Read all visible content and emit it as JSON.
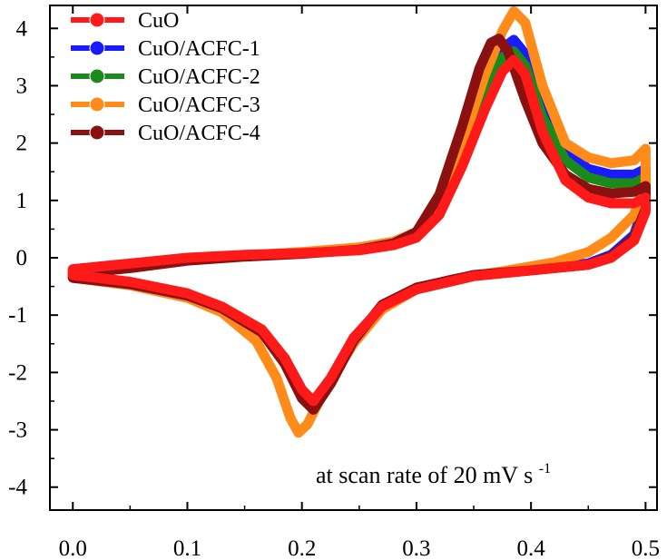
{
  "chart_data": {
    "type": "line",
    "title": "",
    "xlabel": "",
    "ylabel": "",
    "xlim": [
      -0.02,
      0.51
    ],
    "ylim": [
      -4.4,
      4.4
    ],
    "x_ticks": [
      0.0,
      0.1,
      0.2,
      0.3,
      0.4,
      0.5
    ],
    "x_tick_labels": [
      "0.0",
      "0.1",
      "0.2",
      "0.3",
      "0.4",
      "0.5"
    ],
    "y_ticks": [
      4,
      3,
      2,
      1,
      0,
      -1,
      -2,
      -3,
      -4
    ],
    "y_tick_labels": [
      "4",
      "3",
      "2",
      "1",
      "0",
      "-1",
      "-2",
      "-3",
      "-4"
    ],
    "grid": false,
    "legend_position": "top-left",
    "annotation": {
      "main": "at scan rate of 20 mV s",
      "superscript": "-1"
    },
    "series": [
      {
        "name": "CuO/ACFC-1",
        "color": "#1a1aff",
        "points": [
          [
            0.0,
            -0.22
          ],
          [
            0.05,
            -0.12
          ],
          [
            0.1,
            -0.02
          ],
          [
            0.15,
            0.03
          ],
          [
            0.2,
            0.08
          ],
          [
            0.25,
            0.15
          ],
          [
            0.28,
            0.25
          ],
          [
            0.3,
            0.4
          ],
          [
            0.32,
            0.9
          ],
          [
            0.34,
            1.9
          ],
          [
            0.36,
            3.0
          ],
          [
            0.375,
            3.65
          ],
          [
            0.385,
            3.8
          ],
          [
            0.395,
            3.55
          ],
          [
            0.41,
            2.6
          ],
          [
            0.43,
            1.85
          ],
          [
            0.45,
            1.55
          ],
          [
            0.47,
            1.45
          ],
          [
            0.49,
            1.45
          ],
          [
            0.5,
            1.55
          ],
          [
            0.5,
            1.0
          ],
          [
            0.49,
            0.4
          ],
          [
            0.47,
            0.05
          ],
          [
            0.45,
            -0.1
          ],
          [
            0.4,
            -0.2
          ],
          [
            0.35,
            -0.32
          ],
          [
            0.3,
            -0.55
          ],
          [
            0.27,
            -0.85
          ],
          [
            0.245,
            -1.4
          ],
          [
            0.225,
            -2.15
          ],
          [
            0.21,
            -2.55
          ],
          [
            0.2,
            -2.3
          ],
          [
            0.185,
            -1.75
          ],
          [
            0.165,
            -1.3
          ],
          [
            0.13,
            -0.9
          ],
          [
            0.1,
            -0.68
          ],
          [
            0.05,
            -0.45
          ],
          [
            0.0,
            -0.32
          ]
        ]
      },
      {
        "name": "CuO/ACFC-2",
        "color": "#1a8a1a",
        "points": [
          [
            0.0,
            -0.22
          ],
          [
            0.05,
            -0.12
          ],
          [
            0.1,
            -0.02
          ],
          [
            0.15,
            0.03
          ],
          [
            0.2,
            0.08
          ],
          [
            0.25,
            0.15
          ],
          [
            0.28,
            0.25
          ],
          [
            0.3,
            0.4
          ],
          [
            0.32,
            0.9
          ],
          [
            0.34,
            1.85
          ],
          [
            0.36,
            2.95
          ],
          [
            0.375,
            3.5
          ],
          [
            0.385,
            3.6
          ],
          [
            0.395,
            3.35
          ],
          [
            0.41,
            2.45
          ],
          [
            0.43,
            1.7
          ],
          [
            0.45,
            1.4
          ],
          [
            0.47,
            1.3
          ],
          [
            0.49,
            1.3
          ],
          [
            0.5,
            1.4
          ],
          [
            0.5,
            0.9
          ],
          [
            0.49,
            0.35
          ],
          [
            0.47,
            0.0
          ],
          [
            0.45,
            -0.12
          ],
          [
            0.4,
            -0.22
          ],
          [
            0.35,
            -0.32
          ],
          [
            0.3,
            -0.55
          ],
          [
            0.27,
            -0.85
          ],
          [
            0.245,
            -1.45
          ],
          [
            0.225,
            -2.2
          ],
          [
            0.21,
            -2.6
          ],
          [
            0.2,
            -2.35
          ],
          [
            0.185,
            -1.75
          ],
          [
            0.165,
            -1.25
          ],
          [
            0.13,
            -0.88
          ],
          [
            0.1,
            -0.66
          ],
          [
            0.05,
            -0.45
          ],
          [
            0.0,
            -0.32
          ]
        ]
      },
      {
        "name": "CuO/ACFC-3",
        "color": "#ff8c1a",
        "points": [
          [
            0.0,
            -0.25
          ],
          [
            0.05,
            -0.15
          ],
          [
            0.1,
            -0.03
          ],
          [
            0.15,
            0.04
          ],
          [
            0.2,
            0.1
          ],
          [
            0.25,
            0.18
          ],
          [
            0.28,
            0.28
          ],
          [
            0.3,
            0.45
          ],
          [
            0.32,
            0.95
          ],
          [
            0.34,
            2.0
          ],
          [
            0.36,
            3.2
          ],
          [
            0.375,
            3.95
          ],
          [
            0.385,
            4.3
          ],
          [
            0.395,
            4.1
          ],
          [
            0.41,
            3.0
          ],
          [
            0.43,
            2.0
          ],
          [
            0.45,
            1.75
          ],
          [
            0.47,
            1.65
          ],
          [
            0.49,
            1.7
          ],
          [
            0.5,
            1.9
          ],
          [
            0.5,
            1.3
          ],
          [
            0.49,
            0.75
          ],
          [
            0.47,
            0.35
          ],
          [
            0.45,
            0.1
          ],
          [
            0.42,
            -0.08
          ],
          [
            0.38,
            -0.22
          ],
          [
            0.33,
            -0.38
          ],
          [
            0.3,
            -0.55
          ],
          [
            0.27,
            -0.9
          ],
          [
            0.245,
            -1.5
          ],
          [
            0.22,
            -2.3
          ],
          [
            0.205,
            -2.9
          ],
          [
            0.197,
            -3.05
          ],
          [
            0.19,
            -2.8
          ],
          [
            0.178,
            -2.1
          ],
          [
            0.16,
            -1.45
          ],
          [
            0.13,
            -0.95
          ],
          [
            0.1,
            -0.7
          ],
          [
            0.05,
            -0.48
          ],
          [
            0.0,
            -0.35
          ]
        ]
      },
      {
        "name": "CuO/ACFC-4",
        "color": "#8b1010",
        "points": [
          [
            0.0,
            -0.28
          ],
          [
            0.05,
            -0.18
          ],
          [
            0.1,
            -0.05
          ],
          [
            0.15,
            0.02
          ],
          [
            0.2,
            0.07
          ],
          [
            0.25,
            0.14
          ],
          [
            0.28,
            0.25
          ],
          [
            0.3,
            0.45
          ],
          [
            0.32,
            1.1
          ],
          [
            0.34,
            2.3
          ],
          [
            0.355,
            3.3
          ],
          [
            0.365,
            3.75
          ],
          [
            0.372,
            3.82
          ],
          [
            0.38,
            3.6
          ],
          [
            0.395,
            2.75
          ],
          [
            0.41,
            2.0
          ],
          [
            0.43,
            1.45
          ],
          [
            0.45,
            1.2
          ],
          [
            0.47,
            1.12
          ],
          [
            0.49,
            1.15
          ],
          [
            0.5,
            1.25
          ],
          [
            0.5,
            0.85
          ],
          [
            0.49,
            0.35
          ],
          [
            0.47,
            0.02
          ],
          [
            0.45,
            -0.12
          ],
          [
            0.4,
            -0.22
          ],
          [
            0.35,
            -0.3
          ],
          [
            0.3,
            -0.52
          ],
          [
            0.27,
            -0.82
          ],
          [
            0.245,
            -1.45
          ],
          [
            0.225,
            -2.2
          ],
          [
            0.21,
            -2.65
          ],
          [
            0.2,
            -2.45
          ],
          [
            0.185,
            -1.85
          ],
          [
            0.165,
            -1.3
          ],
          [
            0.13,
            -0.88
          ],
          [
            0.1,
            -0.66
          ],
          [
            0.05,
            -0.46
          ],
          [
            0.0,
            -0.35
          ]
        ]
      },
      {
        "name": "CuO",
        "color": "#ff1a1a",
        "points": [
          [
            0.0,
            -0.2
          ],
          [
            0.05,
            -0.1
          ],
          [
            0.1,
            0.0
          ],
          [
            0.15,
            0.05
          ],
          [
            0.2,
            0.08
          ],
          [
            0.25,
            0.13
          ],
          [
            0.28,
            0.22
          ],
          [
            0.3,
            0.35
          ],
          [
            0.32,
            0.75
          ],
          [
            0.34,
            1.6
          ],
          [
            0.36,
            2.6
          ],
          [
            0.375,
            3.25
          ],
          [
            0.385,
            3.45
          ],
          [
            0.395,
            3.2
          ],
          [
            0.41,
            2.2
          ],
          [
            0.43,
            1.35
          ],
          [
            0.45,
            1.05
          ],
          [
            0.47,
            0.95
          ],
          [
            0.49,
            0.95
          ],
          [
            0.5,
            1.05
          ],
          [
            0.5,
            0.8
          ],
          [
            0.49,
            0.3
          ],
          [
            0.47,
            0.0
          ],
          [
            0.45,
            -0.12
          ],
          [
            0.4,
            -0.22
          ],
          [
            0.35,
            -0.32
          ],
          [
            0.3,
            -0.55
          ],
          [
            0.27,
            -0.85
          ],
          [
            0.245,
            -1.4
          ],
          [
            0.225,
            -2.1
          ],
          [
            0.21,
            -2.5
          ],
          [
            0.2,
            -2.3
          ],
          [
            0.185,
            -1.75
          ],
          [
            0.165,
            -1.25
          ],
          [
            0.13,
            -0.85
          ],
          [
            0.1,
            -0.62
          ],
          [
            0.05,
            -0.42
          ],
          [
            0.0,
            -0.3
          ]
        ]
      }
    ],
    "legend_order": [
      "CuO",
      "CuO/ACFC-1",
      "CuO/ACFC-2",
      "CuO/ACFC-3",
      "CuO/ACFC-4"
    ]
  }
}
